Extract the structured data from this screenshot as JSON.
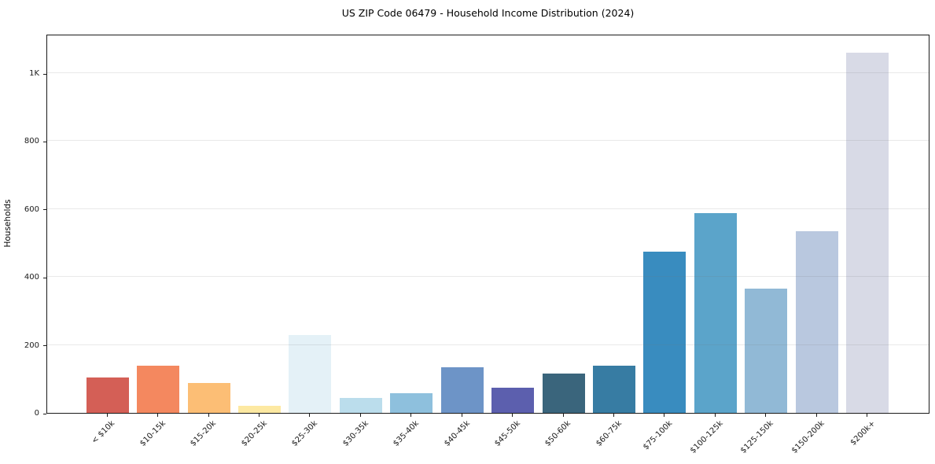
{
  "figure": {
    "title": "US ZIP Code 06479 - Household Income Distribution (2024)",
    "ylabel": "Households"
  },
  "chart_data": {
    "type": "bar",
    "title": "US ZIP Code 06479 - Household Income Distribution (2024)",
    "xlabel": "",
    "ylabel": "Households",
    "ylim": [
      0,
      1116
    ],
    "grid": "horizontal",
    "legend": "none",
    "categories": [
      "< $10k",
      "$10-15k",
      "$15-20k",
      "$20-25k",
      "$25-30k",
      "$30-35k",
      "$35-40k",
      "$40-45k",
      "$45-50k",
      "$50-60k",
      "$60-75k",
      "$75-100k",
      "$100-125k",
      "$125-150k",
      "$150-200k",
      "$200k+"
    ],
    "values": [
      105,
      140,
      88,
      22,
      230,
      43,
      57,
      135,
      73,
      115,
      140,
      475,
      588,
      365,
      535,
      1060
    ],
    "bar_colors": [
      "#d45f56",
      "#f4885f",
      "#fcbe75",
      "#fde9a2",
      "#e4f1f7",
      "#bbddec",
      "#8ec0dd",
      "#6d94c7",
      "#5c5fae",
      "#3a657c",
      "#377ca3",
      "#398cbf",
      "#5ba4ca",
      "#91b9d6",
      "#b9c8df",
      "#d8dae6"
    ],
    "y_ticks": [
      {
        "value": 0,
        "label": "0"
      },
      {
        "value": 200,
        "label": "200"
      },
      {
        "value": 400,
        "label": "400"
      },
      {
        "value": 600,
        "label": "600"
      },
      {
        "value": 800,
        "label": "800"
      },
      {
        "value": 1000,
        "label": "1K"
      }
    ]
  }
}
